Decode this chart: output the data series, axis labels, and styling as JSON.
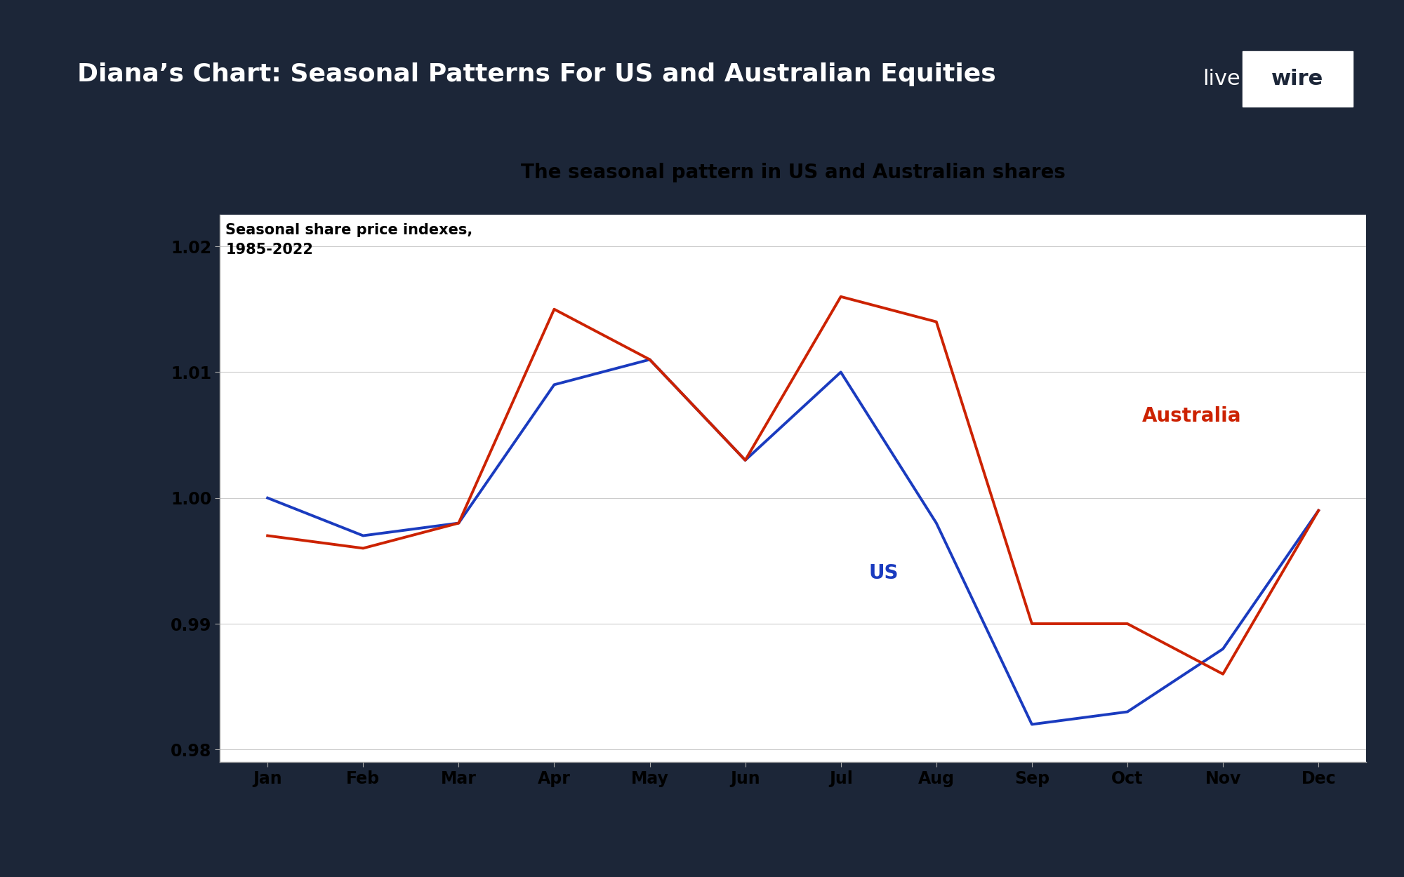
{
  "title_main": "Diana’s Chart: Seasonal Patterns For US and Australian Equities",
  "chart_title": "The seasonal pattern in US and Australian shares",
  "subtitle": "Seasonal share price indexes,\n1985-2022",
  "months": [
    "Jan",
    "Feb",
    "Mar",
    "Apr",
    "May",
    "Jun",
    "Jul",
    "Aug",
    "Sep",
    "Oct",
    "Nov",
    "Dec"
  ],
  "us_values": [
    1.0,
    0.997,
    0.998,
    1.009,
    1.011,
    1.003,
    1.01,
    0.998,
    0.982,
    0.983,
    0.988,
    0.999
  ],
  "aus_values": [
    0.997,
    0.996,
    0.998,
    1.015,
    1.011,
    1.003,
    1.016,
    1.014,
    0.99,
    0.99,
    0.986,
    0.999
  ],
  "us_color": "#1A3BBF",
  "aus_color": "#CC2200",
  "ylim_min": 0.979,
  "ylim_max": 1.0225,
  "yticks": [
    0.98,
    0.99,
    1.0,
    1.01,
    1.02
  ],
  "background_outer": "#1c2638",
  "background_chart": "#ffffff",
  "us_label": "US",
  "aus_label": "Australia",
  "line_width": 2.8,
  "title_fontsize": 26,
  "chart_title_fontsize": 20,
  "subtitle_fontsize": 15,
  "tick_fontsize": 17,
  "label_fontsize": 20,
  "logo_fontsize": 22
}
